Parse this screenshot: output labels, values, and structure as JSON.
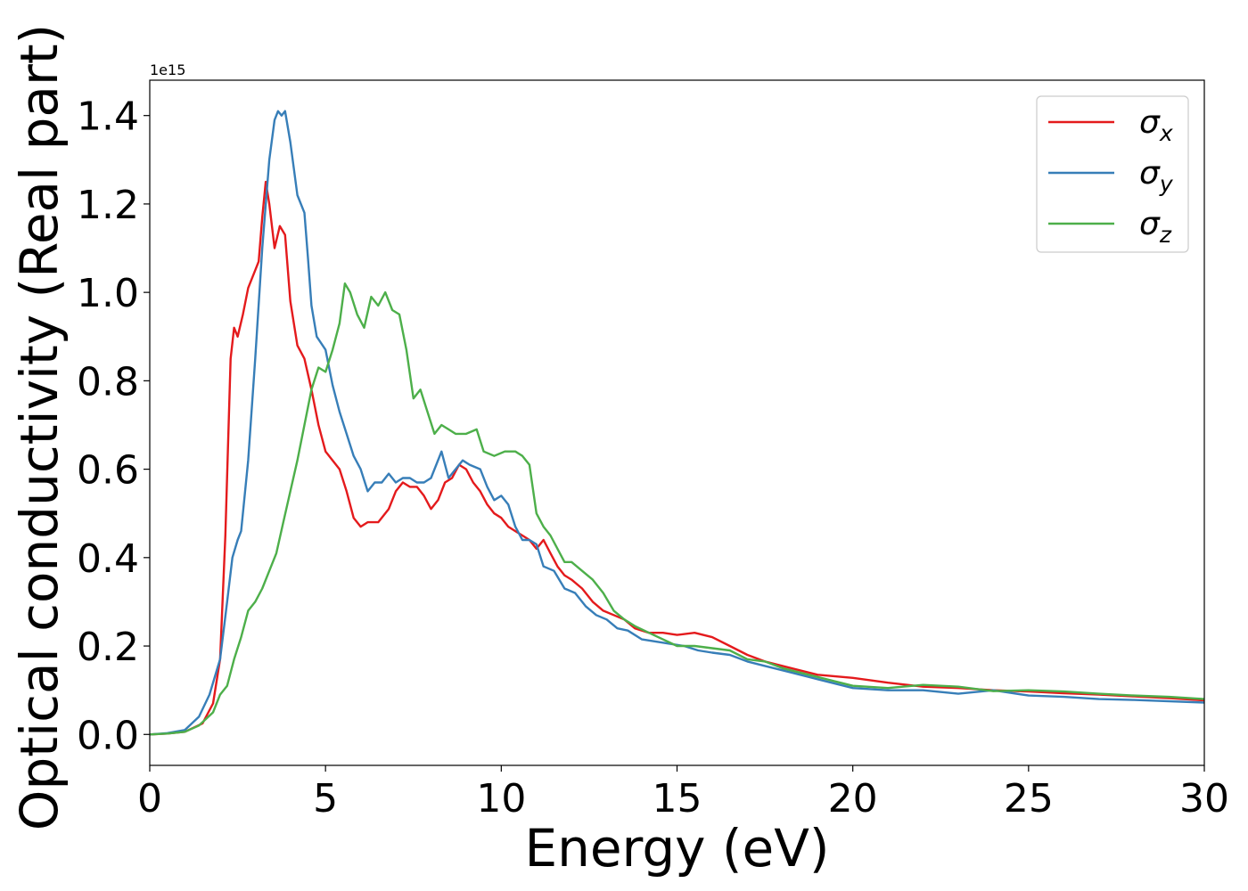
{
  "chart_data": {
    "type": "line",
    "xlabel": "Energy (eV)",
    "ylabel": "Optical conductivity (Real part)",
    "offset_text": "1e15",
    "xlim": [
      0,
      30
    ],
    "ylim": [
      -0.07,
      1.48
    ],
    "x_ticks": [
      0,
      5,
      10,
      15,
      20,
      25,
      30
    ],
    "y_ticks": [
      0.0,
      0.2,
      0.4,
      0.6,
      0.8,
      1.0,
      1.2,
      1.4
    ],
    "x_tick_labels": [
      "0",
      "5",
      "10",
      "15",
      "20",
      "25",
      "30"
    ],
    "y_tick_labels": [
      "0.0",
      "0.2",
      "0.4",
      "0.6",
      "0.8",
      "1.0",
      "1.2",
      "1.4"
    ],
    "grid": false,
    "legend": {
      "placement": "top-right",
      "entries": [
        {
          "label": "σx",
          "base": "σ",
          "sub": "x",
          "color": "#e41a1c"
        },
        {
          "label": "σy",
          "base": "σ",
          "sub": "y",
          "color": "#377eb8"
        },
        {
          "label": "σz",
          "base": "σ",
          "sub": "z",
          "color": "#4daf4a"
        }
      ]
    },
    "series": [
      {
        "color": "#e41a1c",
        "points": [
          [
            0,
            0
          ],
          [
            0.5,
            0.002
          ],
          [
            1.0,
            0.006
          ],
          [
            1.5,
            0.025
          ],
          [
            1.8,
            0.07
          ],
          [
            2.0,
            0.17
          ],
          [
            2.15,
            0.45
          ],
          [
            2.3,
            0.85
          ],
          [
            2.4,
            0.92
          ],
          [
            2.5,
            0.9
          ],
          [
            2.65,
            0.95
          ],
          [
            2.8,
            1.01
          ],
          [
            3.0,
            1.05
          ],
          [
            3.1,
            1.07
          ],
          [
            3.2,
            1.17
          ],
          [
            3.3,
            1.25
          ],
          [
            3.4,
            1.2
          ],
          [
            3.55,
            1.1
          ],
          [
            3.7,
            1.15
          ],
          [
            3.85,
            1.13
          ],
          [
            4.0,
            0.98
          ],
          [
            4.2,
            0.88
          ],
          [
            4.4,
            0.85
          ],
          [
            4.6,
            0.78
          ],
          [
            4.8,
            0.7
          ],
          [
            5.0,
            0.64
          ],
          [
            5.2,
            0.62
          ],
          [
            5.4,
            0.6
          ],
          [
            5.6,
            0.55
          ],
          [
            5.8,
            0.49
          ],
          [
            6.0,
            0.47
          ],
          [
            6.2,
            0.48
          ],
          [
            6.5,
            0.48
          ],
          [
            6.8,
            0.51
          ],
          [
            7.0,
            0.55
          ],
          [
            7.2,
            0.57
          ],
          [
            7.4,
            0.56
          ],
          [
            7.6,
            0.56
          ],
          [
            7.8,
            0.54
          ],
          [
            8.0,
            0.51
          ],
          [
            8.2,
            0.53
          ],
          [
            8.4,
            0.57
          ],
          [
            8.6,
            0.58
          ],
          [
            8.8,
            0.61
          ],
          [
            9.0,
            0.6
          ],
          [
            9.2,
            0.57
          ],
          [
            9.4,
            0.55
          ],
          [
            9.6,
            0.52
          ],
          [
            9.8,
            0.5
          ],
          [
            10.0,
            0.49
          ],
          [
            10.2,
            0.47
          ],
          [
            10.4,
            0.46
          ],
          [
            10.6,
            0.45
          ],
          [
            10.8,
            0.44
          ],
          [
            11.0,
            0.42
          ],
          [
            11.2,
            0.44
          ],
          [
            11.4,
            0.41
          ],
          [
            11.6,
            0.38
          ],
          [
            11.8,
            0.36
          ],
          [
            12.0,
            0.35
          ],
          [
            12.3,
            0.33
          ],
          [
            12.6,
            0.3
          ],
          [
            12.9,
            0.28
          ],
          [
            13.2,
            0.27
          ],
          [
            13.5,
            0.26
          ],
          [
            13.8,
            0.24
          ],
          [
            14.2,
            0.23
          ],
          [
            14.6,
            0.23
          ],
          [
            15.0,
            0.225
          ],
          [
            15.5,
            0.23
          ],
          [
            16.0,
            0.22
          ],
          [
            16.5,
            0.2
          ],
          [
            17.0,
            0.18
          ],
          [
            17.5,
            0.165
          ],
          [
            18.0,
            0.155
          ],
          [
            19.0,
            0.135
          ],
          [
            20.0,
            0.128
          ],
          [
            21.0,
            0.117
          ],
          [
            22.0,
            0.108
          ],
          [
            23.0,
            0.105
          ],
          [
            24.0,
            0.1
          ],
          [
            25.0,
            0.097
          ],
          [
            26.0,
            0.093
          ],
          [
            27.0,
            0.09
          ],
          [
            28.0,
            0.086
          ],
          [
            29.0,
            0.082
          ],
          [
            30.0,
            0.077
          ]
        ]
      },
      {
        "color": "#377eb8",
        "points": [
          [
            0,
            0
          ],
          [
            0.5,
            0.003
          ],
          [
            1.0,
            0.01
          ],
          [
            1.4,
            0.04
          ],
          [
            1.7,
            0.09
          ],
          [
            2.0,
            0.17
          ],
          [
            2.2,
            0.3
          ],
          [
            2.35,
            0.4
          ],
          [
            2.5,
            0.44
          ],
          [
            2.6,
            0.46
          ],
          [
            2.8,
            0.62
          ],
          [
            3.0,
            0.85
          ],
          [
            3.2,
            1.1
          ],
          [
            3.4,
            1.3
          ],
          [
            3.55,
            1.39
          ],
          [
            3.65,
            1.41
          ],
          [
            3.75,
            1.4
          ],
          [
            3.85,
            1.41
          ],
          [
            4.0,
            1.34
          ],
          [
            4.2,
            1.22
          ],
          [
            4.4,
            1.18
          ],
          [
            4.5,
            1.08
          ],
          [
            4.6,
            0.97
          ],
          [
            4.75,
            0.9
          ],
          [
            5.0,
            0.87
          ],
          [
            5.2,
            0.79
          ],
          [
            5.4,
            0.73
          ],
          [
            5.6,
            0.68
          ],
          [
            5.8,
            0.63
          ],
          [
            6.0,
            0.6
          ],
          [
            6.2,
            0.55
          ],
          [
            6.4,
            0.57
          ],
          [
            6.6,
            0.57
          ],
          [
            6.8,
            0.59
          ],
          [
            7.0,
            0.57
          ],
          [
            7.2,
            0.58
          ],
          [
            7.4,
            0.58
          ],
          [
            7.6,
            0.57
          ],
          [
            7.8,
            0.57
          ],
          [
            8.0,
            0.58
          ],
          [
            8.3,
            0.64
          ],
          [
            8.5,
            0.58
          ],
          [
            8.7,
            0.6
          ],
          [
            8.9,
            0.62
          ],
          [
            9.1,
            0.61
          ],
          [
            9.4,
            0.6
          ],
          [
            9.6,
            0.56
          ],
          [
            9.8,
            0.53
          ],
          [
            10.0,
            0.54
          ],
          [
            10.2,
            0.52
          ],
          [
            10.4,
            0.47
          ],
          [
            10.6,
            0.44
          ],
          [
            10.8,
            0.44
          ],
          [
            11.0,
            0.43
          ],
          [
            11.2,
            0.38
          ],
          [
            11.5,
            0.37
          ],
          [
            11.8,
            0.33
          ],
          [
            12.1,
            0.32
          ],
          [
            12.4,
            0.29
          ],
          [
            12.7,
            0.27
          ],
          [
            13.0,
            0.26
          ],
          [
            13.3,
            0.24
          ],
          [
            13.6,
            0.235
          ],
          [
            14.0,
            0.215
          ],
          [
            14.4,
            0.21
          ],
          [
            14.8,
            0.205
          ],
          [
            15.2,
            0.2
          ],
          [
            15.6,
            0.19
          ],
          [
            16.0,
            0.185
          ],
          [
            16.5,
            0.18
          ],
          [
            17.0,
            0.165
          ],
          [
            17.5,
            0.155
          ],
          [
            18.0,
            0.145
          ],
          [
            19.0,
            0.125
          ],
          [
            20.0,
            0.105
          ],
          [
            21.0,
            0.1
          ],
          [
            22.0,
            0.1
          ],
          [
            23.0,
            0.092
          ],
          [
            24.0,
            0.1
          ],
          [
            25.0,
            0.088
          ],
          [
            26.0,
            0.085
          ],
          [
            27.0,
            0.08
          ],
          [
            28.0,
            0.078
          ],
          [
            29.0,
            0.075
          ],
          [
            30.0,
            0.072
          ]
        ]
      },
      {
        "color": "#4daf4a",
        "points": [
          [
            0,
            0
          ],
          [
            0.5,
            0.002
          ],
          [
            1.0,
            0.006
          ],
          [
            1.4,
            0.02
          ],
          [
            1.8,
            0.05
          ],
          [
            2.0,
            0.09
          ],
          [
            2.2,
            0.11
          ],
          [
            2.4,
            0.17
          ],
          [
            2.6,
            0.22
          ],
          [
            2.8,
            0.28
          ],
          [
            3.0,
            0.3
          ],
          [
            3.2,
            0.33
          ],
          [
            3.4,
            0.37
          ],
          [
            3.6,
            0.41
          ],
          [
            3.8,
            0.48
          ],
          [
            4.0,
            0.55
          ],
          [
            4.2,
            0.62
          ],
          [
            4.4,
            0.7
          ],
          [
            4.6,
            0.78
          ],
          [
            4.8,
            0.83
          ],
          [
            5.0,
            0.82
          ],
          [
            5.2,
            0.87
          ],
          [
            5.4,
            0.93
          ],
          [
            5.55,
            1.02
          ],
          [
            5.7,
            1.0
          ],
          [
            5.9,
            0.95
          ],
          [
            6.1,
            0.92
          ],
          [
            6.3,
            0.99
          ],
          [
            6.5,
            0.97
          ],
          [
            6.7,
            1.0
          ],
          [
            6.9,
            0.96
          ],
          [
            7.1,
            0.95
          ],
          [
            7.3,
            0.87
          ],
          [
            7.5,
            0.76
          ],
          [
            7.7,
            0.78
          ],
          [
            7.9,
            0.73
          ],
          [
            8.1,
            0.68
          ],
          [
            8.3,
            0.7
          ],
          [
            8.5,
            0.69
          ],
          [
            8.7,
            0.68
          ],
          [
            9.0,
            0.68
          ],
          [
            9.3,
            0.69
          ],
          [
            9.5,
            0.64
          ],
          [
            9.8,
            0.63
          ],
          [
            10.1,
            0.64
          ],
          [
            10.4,
            0.64
          ],
          [
            10.6,
            0.63
          ],
          [
            10.8,
            0.61
          ],
          [
            11.0,
            0.5
          ],
          [
            11.2,
            0.47
          ],
          [
            11.4,
            0.45
          ],
          [
            11.6,
            0.42
          ],
          [
            11.8,
            0.39
          ],
          [
            12.0,
            0.39
          ],
          [
            12.3,
            0.37
          ],
          [
            12.6,
            0.35
          ],
          [
            12.9,
            0.32
          ],
          [
            13.2,
            0.28
          ],
          [
            13.5,
            0.26
          ],
          [
            13.8,
            0.245
          ],
          [
            14.2,
            0.23
          ],
          [
            14.6,
            0.215
          ],
          [
            15.0,
            0.2
          ],
          [
            15.5,
            0.2
          ],
          [
            16.0,
            0.195
          ],
          [
            16.5,
            0.19
          ],
          [
            17.0,
            0.17
          ],
          [
            17.5,
            0.165
          ],
          [
            18.0,
            0.15
          ],
          [
            19.0,
            0.13
          ],
          [
            20.0,
            0.11
          ],
          [
            21.0,
            0.105
          ],
          [
            22.0,
            0.112
          ],
          [
            23.0,
            0.108
          ],
          [
            24.0,
            0.098
          ],
          [
            25.0,
            0.1
          ],
          [
            26.0,
            0.097
          ],
          [
            27.0,
            0.092
          ],
          [
            28.0,
            0.088
          ],
          [
            29.0,
            0.085
          ],
          [
            30.0,
            0.08
          ]
        ]
      }
    ]
  }
}
